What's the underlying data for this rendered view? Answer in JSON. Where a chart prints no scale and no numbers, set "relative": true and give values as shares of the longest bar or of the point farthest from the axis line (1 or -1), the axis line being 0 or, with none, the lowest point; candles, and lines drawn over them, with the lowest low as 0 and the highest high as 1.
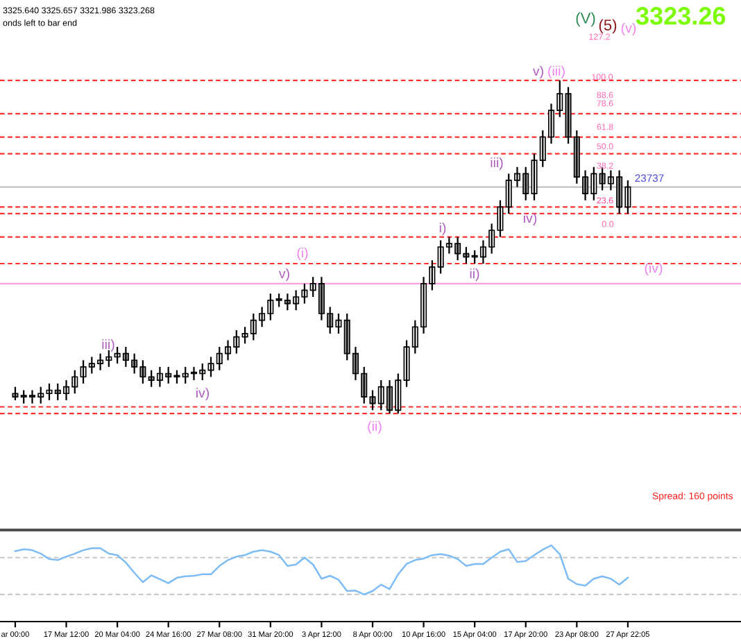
{
  "chart_data": [
    {
      "type": "candlestick",
      "relative": true,
      "tick_labels": false,
      "categories": [
        null,
        null,
        null,
        null,
        null,
        null,
        null,
        null,
        null,
        null,
        null,
        null,
        null,
        null,
        null,
        null,
        null,
        null,
        null,
        null,
        null,
        null,
        null,
        null,
        null,
        null,
        null,
        null,
        null,
        null,
        null,
        null,
        null,
        null,
        null,
        null,
        null,
        null,
        null,
        null,
        null,
        null,
        null,
        null,
        null,
        null,
        null,
        null,
        null,
        null,
        null,
        null,
        null,
        null,
        null,
        null,
        null,
        null,
        null,
        null,
        null,
        null,
        null,
        null,
        null,
        null,
        null,
        null,
        null,
        null,
        null,
        null,
        null
      ],
      "ohlc": [
        [
          0.06,
          0.08,
          0.04,
          0.05
        ],
        [
          0.05,
          0.07,
          0.03,
          0.05
        ],
        [
          0.05,
          0.07,
          0.03,
          0.05
        ],
        [
          0.05,
          0.08,
          0.03,
          0.06
        ],
        [
          0.06,
          0.09,
          0.04,
          0.07
        ],
        [
          0.07,
          0.09,
          0.04,
          0.06
        ],
        [
          0.06,
          0.1,
          0.04,
          0.08
        ],
        [
          0.08,
          0.13,
          0.06,
          0.11
        ],
        [
          0.11,
          0.16,
          0.09,
          0.14
        ],
        [
          0.14,
          0.17,
          0.12,
          0.15
        ],
        [
          0.15,
          0.18,
          0.13,
          0.16
        ],
        [
          0.16,
          0.19,
          0.14,
          0.17
        ],
        [
          0.17,
          0.2,
          0.15,
          0.18
        ],
        [
          0.18,
          0.2,
          0.14,
          0.16
        ],
        [
          0.16,
          0.18,
          0.12,
          0.14
        ],
        [
          0.14,
          0.16,
          0.09,
          0.11
        ],
        [
          0.11,
          0.13,
          0.08,
          0.1
        ],
        [
          0.1,
          0.14,
          0.08,
          0.12
        ],
        [
          0.12,
          0.14,
          0.09,
          0.11
        ],
        [
          0.11,
          0.13,
          0.09,
          0.11
        ],
        [
          0.11,
          0.14,
          0.09,
          0.12
        ],
        [
          0.12,
          0.14,
          0.1,
          0.12
        ],
        [
          0.12,
          0.15,
          0.1,
          0.13
        ],
        [
          0.13,
          0.17,
          0.11,
          0.15
        ],
        [
          0.15,
          0.2,
          0.13,
          0.18
        ],
        [
          0.18,
          0.22,
          0.16,
          0.2
        ],
        [
          0.2,
          0.25,
          0.18,
          0.23
        ],
        [
          0.23,
          0.26,
          0.21,
          0.24
        ],
        [
          0.24,
          0.3,
          0.22,
          0.28
        ],
        [
          0.28,
          0.32,
          0.26,
          0.3
        ],
        [
          0.3,
          0.36,
          0.28,
          0.34
        ],
        [
          0.34,
          0.36,
          0.32,
          0.34
        ],
        [
          0.34,
          0.36,
          0.31,
          0.33
        ],
        [
          0.33,
          0.37,
          0.31,
          0.35
        ],
        [
          0.35,
          0.39,
          0.33,
          0.37
        ],
        [
          0.37,
          0.41,
          0.35,
          0.39
        ],
        [
          0.39,
          0.41,
          0.28,
          0.3
        ],
        [
          0.3,
          0.32,
          0.24,
          0.26
        ],
        [
          0.26,
          0.3,
          0.24,
          0.28
        ],
        [
          0.28,
          0.3,
          0.16,
          0.18
        ],
        [
          0.18,
          0.2,
          0.1,
          0.12
        ],
        [
          0.12,
          0.14,
          0.03,
          0.05
        ],
        [
          0.05,
          0.07,
          0.01,
          0.03
        ],
        [
          0.03,
          0.1,
          0.01,
          0.08
        ],
        [
          0.08,
          0.1,
          0.0,
          0.01
        ],
        [
          0.01,
          0.12,
          0.0,
          0.1
        ],
        [
          0.1,
          0.22,
          0.08,
          0.2
        ],
        [
          0.2,
          0.28,
          0.18,
          0.26
        ],
        [
          0.26,
          0.41,
          0.24,
          0.39
        ],
        [
          0.39,
          0.46,
          0.37,
          0.44
        ],
        [
          0.44,
          0.52,
          0.42,
          0.5
        ],
        [
          0.5,
          0.53,
          0.48,
          0.51
        ],
        [
          0.51,
          0.53,
          0.46,
          0.48
        ],
        [
          0.48,
          0.5,
          0.45,
          0.47
        ],
        [
          0.47,
          0.49,
          0.45,
          0.47
        ],
        [
          0.47,
          0.52,
          0.45,
          0.5
        ],
        [
          0.5,
          0.57,
          0.48,
          0.55
        ],
        [
          0.55,
          0.64,
          0.53,
          0.62
        ],
        [
          0.62,
          0.72,
          0.6,
          0.7
        ],
        [
          0.7,
          0.74,
          0.68,
          0.72
        ],
        [
          0.72,
          0.74,
          0.64,
          0.66
        ],
        [
          0.66,
          0.78,
          0.64,
          0.76
        ],
        [
          0.76,
          0.85,
          0.74,
          0.83
        ],
        [
          0.83,
          0.93,
          0.81,
          0.91
        ],
        [
          0.91,
          1.0,
          0.89,
          0.96
        ],
        [
          0.96,
          0.98,
          0.81,
          0.83
        ],
        [
          0.83,
          0.85,
          0.69,
          0.71
        ],
        [
          0.71,
          0.73,
          0.64,
          0.66
        ],
        [
          0.66,
          0.74,
          0.64,
          0.72
        ],
        [
          0.72,
          0.74,
          0.67,
          0.69
        ],
        [
          0.69,
          0.73,
          0.67,
          0.71
        ],
        [
          0.71,
          0.73,
          0.6,
          0.62
        ],
        [
          0.62,
          0.7,
          0.6,
          0.68
        ]
      ],
      "ref_lines": [
        {
          "axis": "y",
          "value": 1.0,
          "color": "#ff3030",
          "line_style": "dashed"
        },
        {
          "axis": "y",
          "value": 0.9,
          "color": "#ff3030",
          "line_style": "dashed"
        },
        {
          "axis": "y",
          "value": 0.83,
          "color": "#ff3030",
          "line_style": "dashed"
        },
        {
          "axis": "y",
          "value": 0.78,
          "color": "#ff3030",
          "line_style": "dashed"
        },
        {
          "axis": "y",
          "value": 0.68,
          "color": "#c0c0c0",
          "line_style": "solid"
        },
        {
          "axis": "y",
          "value": 0.62,
          "color": "#ff3030",
          "line_style": "dashed"
        },
        {
          "axis": "y",
          "value": 0.6,
          "color": "#ff3030",
          "line_style": "dashed"
        },
        {
          "axis": "y",
          "value": 0.53,
          "color": "#ff3030",
          "line_style": "dashed"
        },
        {
          "axis": "y",
          "value": 0.45,
          "color": "#ff3030",
          "line_style": "dashed"
        },
        {
          "axis": "y",
          "value": 0.39,
          "color": "#ff9ee0",
          "line_style": "solid"
        },
        {
          "axis": "y",
          "value": 0.02,
          "color": "#ff3030",
          "line_style": "dashed"
        },
        {
          "axis": "y",
          "value": 0.0,
          "color": "#ff3030",
          "line_style": "dashed"
        }
      ],
      "annotations": [
        "3325.640 3325.657 3321.986 3323.268",
        "onds left to bar end",
        "3323.26",
        "(V)",
        "(5)",
        "(v)",
        "(i)",
        "v)",
        "iii)",
        "iv)",
        "(ii)",
        "i)",
        "ii)",
        "iii)",
        "iv)",
        "v)",
        "(iii)",
        "(iv)",
        "127.2",
        "100.0",
        "88.6",
        "78.6",
        "61.8",
        "50.0",
        "38.2",
        "23.6",
        "0.0",
        "23737",
        "Spread: 160 points"
      ]
    },
    {
      "type": "line",
      "relative": true,
      "tick_labels": "x",
      "categories": [
        "ar 00:00",
        null,
        null,
        null,
        null,
        null,
        "17 Mar 12:00",
        null,
        null,
        null,
        null,
        null,
        "20 Mar 04:00",
        null,
        null,
        null,
        null,
        null,
        "24 Mar 16:00",
        null,
        null,
        null,
        null,
        null,
        "27 Mar 08:00",
        null,
        null,
        null,
        null,
        null,
        "31 Mar 20:00",
        null,
        null,
        null,
        null,
        null,
        "3 Apr 12:00",
        null,
        null,
        null,
        null,
        null,
        "8 Apr 00:00",
        null,
        null,
        null,
        null,
        null,
        "10 Apr 16:00",
        null,
        null,
        null,
        null,
        null,
        "15 Apr 04:00",
        null,
        null,
        null,
        null,
        null,
        "17 Apr 20:00",
        null,
        null,
        null,
        null,
        null,
        "23 Apr 08:00",
        null,
        null,
        null,
        null,
        null,
        "27 Apr 22:05"
      ],
      "series": [
        {
          "color": "#7dbcf5",
          "values": [
            0.88,
            0.92,
            0.9,
            0.83,
            0.72,
            0.7,
            0.77,
            0.83,
            0.9,
            0.94,
            0.94,
            0.83,
            0.8,
            0.65,
            0.44,
            0.25,
            0.39,
            0.31,
            0.23,
            0.34,
            0.37,
            0.38,
            0.41,
            0.41,
            0.58,
            0.7,
            0.77,
            0.8,
            0.87,
            0.9,
            0.87,
            0.8,
            0.58,
            0.61,
            0.75,
            0.61,
            0.32,
            0.38,
            0.3,
            0.07,
            0.08,
            0.0,
            0.07,
            0.2,
            0.11,
            0.41,
            0.62,
            0.7,
            0.73,
            0.8,
            0.82,
            0.79,
            0.72,
            0.58,
            0.62,
            0.62,
            0.75,
            0.87,
            0.92,
            0.66,
            0.68,
            0.8,
            0.91,
            1.0,
            0.82,
            0.32,
            0.21,
            0.18,
            0.32,
            0.37,
            0.32,
            0.2,
            0.34
          ]
        }
      ],
      "ref_lines": [
        {
          "axis": "y",
          "value": 0.75,
          "color": "#c8c8c8",
          "line_style": "dashed"
        },
        {
          "axis": "y",
          "value": 0.0,
          "color": "#c8c8c8",
          "line_style": "dashed"
        }
      ]
    }
  ]
}
